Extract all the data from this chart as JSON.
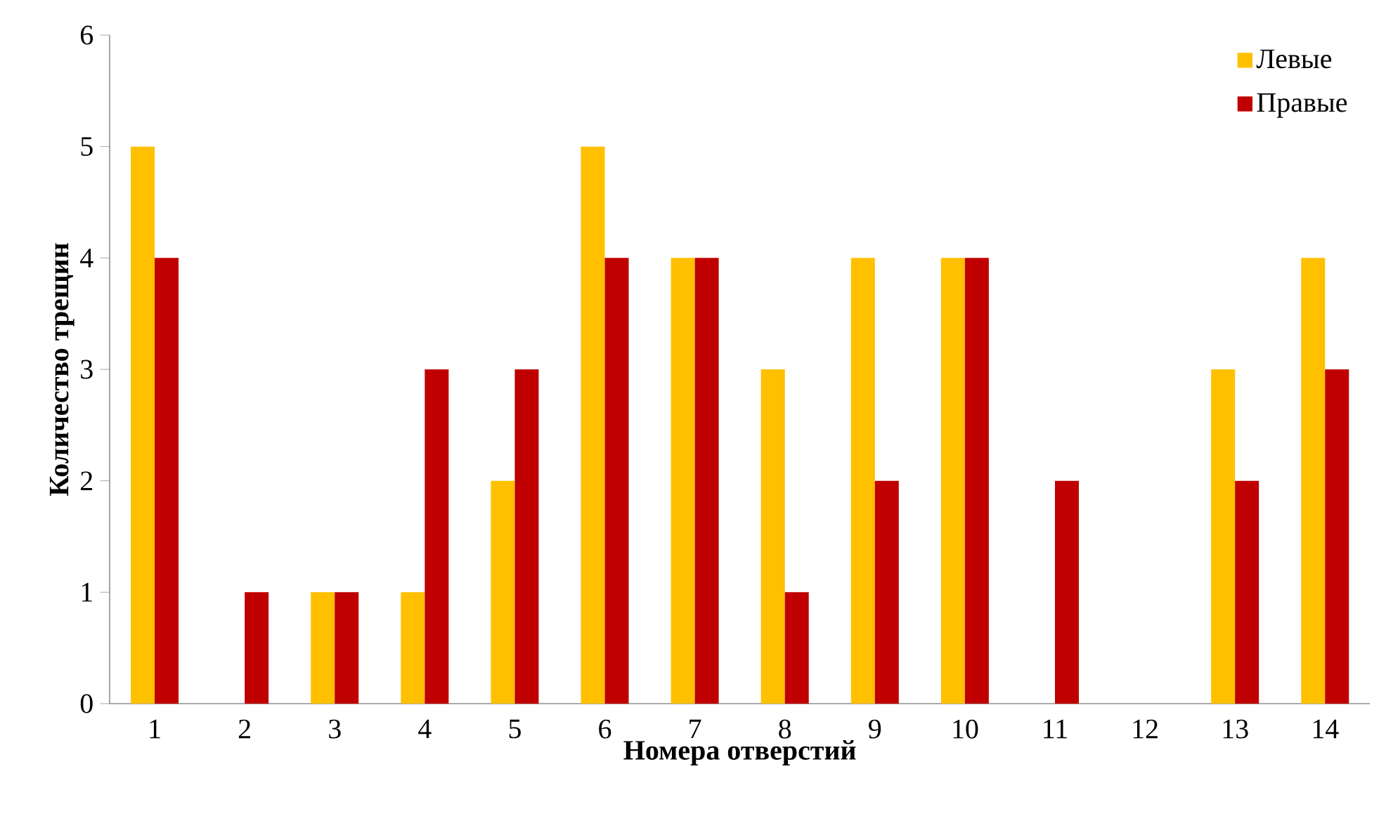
{
  "chart_data": {
    "type": "bar",
    "xlabel": "Номера отверстий",
    "ylabel": "Количество трещин",
    "categories": [
      "1",
      "2",
      "3",
      "4",
      "5",
      "6",
      "7",
      "8",
      "9",
      "10",
      "11",
      "12",
      "13",
      "14"
    ],
    "series": [
      {
        "name": "Левые",
        "color": "#ffc000",
        "values": [
          5,
          0,
          1,
          1,
          2,
          5,
          4,
          3,
          4,
          4,
          0,
          0,
          3,
          4
        ]
      },
      {
        "name": "Правые",
        "color": "#c00000",
        "values": [
          4,
          1,
          1,
          3,
          3,
          4,
          4,
          1,
          2,
          4,
          2,
          0,
          2,
          3
        ]
      }
    ],
    "ylim": [
      0,
      6
    ],
    "yticks": [
      0,
      1,
      2,
      3,
      4,
      5,
      6
    ],
    "legend": "top right"
  }
}
